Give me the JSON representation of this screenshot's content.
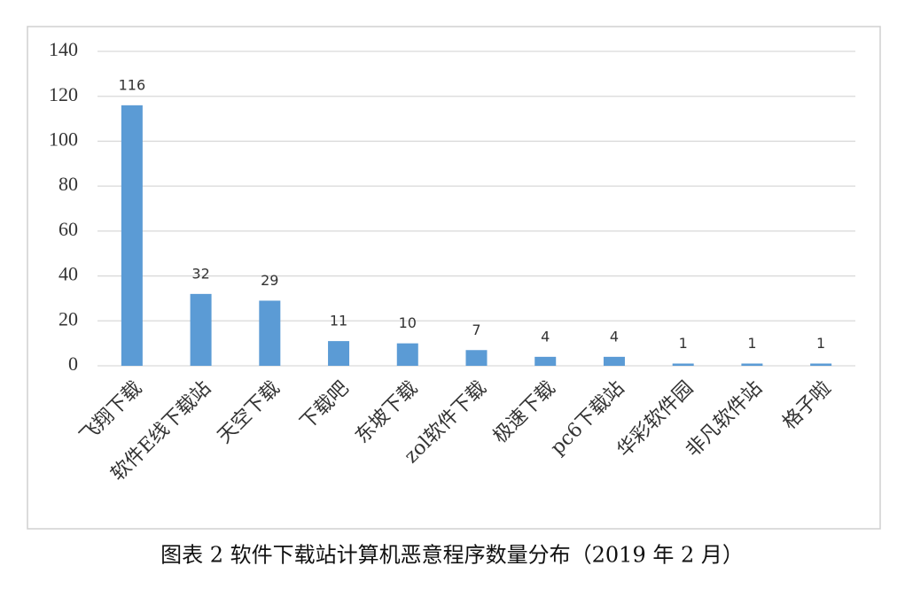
{
  "chart_data": {
    "type": "bar",
    "caption": "图表 2 软件下载站计算机恶意程序数量分布（2019 年 2 月）",
    "categories": [
      "飞翔下载",
      "软件E线下载站",
      "天空下载",
      "下载吧",
      "东坡下载",
      "zol软件下载",
      "极速下载",
      "pc6下载站",
      "华彩软件园",
      "非凡软件站",
      "格子啦"
    ],
    "values": [
      116,
      32,
      29,
      11,
      10,
      7,
      4,
      4,
      1,
      1,
      1
    ],
    "color": "#5b9bd5",
    "ylim": [
      0,
      140
    ],
    "yticks": [
      0,
      20,
      40,
      60,
      80,
      100,
      120,
      140
    ],
    "grid": true
  }
}
